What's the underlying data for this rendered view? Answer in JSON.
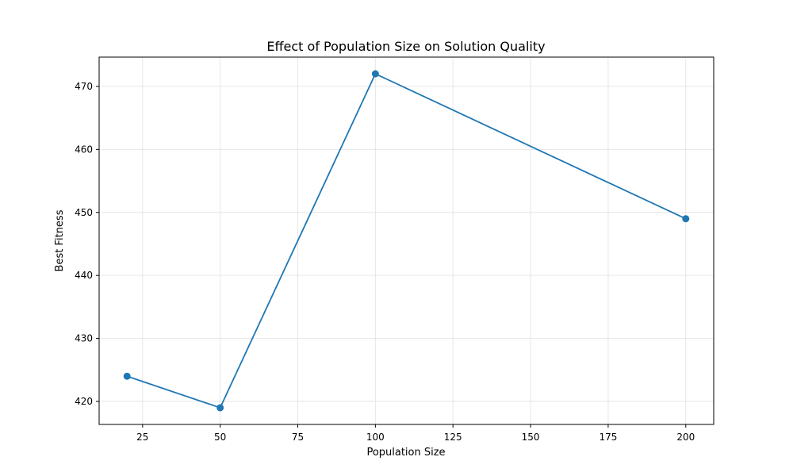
{
  "chart_data": {
    "type": "line",
    "title": "Effect of Population Size on Solution Quality",
    "xlabel": "Population Size",
    "ylabel": "Best Fitness",
    "x": [
      20,
      50,
      100,
      200
    ],
    "series": [
      {
        "values": [
          424,
          419,
          472,
          449
        ],
        "color": "#1f77b4",
        "marker": "circle"
      }
    ],
    "xlim": [
      11,
      209
    ],
    "ylim": [
      416.35,
      474.65
    ],
    "xticks": [
      25,
      50,
      75,
      100,
      125,
      150,
      175,
      200
    ],
    "yticks": [
      420,
      430,
      440,
      450,
      460,
      470
    ],
    "grid": true,
    "axis_color": "#000000",
    "grid_color": "#e6e6e6"
  }
}
